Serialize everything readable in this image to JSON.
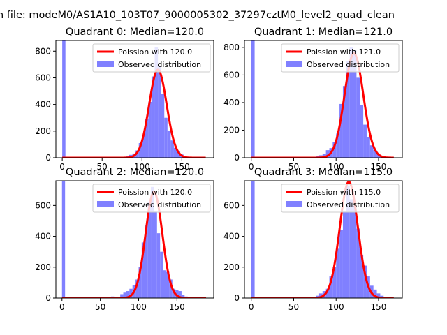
{
  "figure": {
    "suptitle": "n file: modeM0/AS1A10_103T07_9000005302_37297cztM0_level2_quad_clean"
  },
  "colors": {
    "poisson_line": "#ff0000",
    "observed_bars": "#8080ff",
    "axes": "#000000",
    "background": "#ffffff"
  },
  "chart_data": [
    {
      "type": "bar",
      "title": "Quadrant 0: Median=120.0",
      "xlabel": "",
      "ylabel": "",
      "xlim": [
        -8,
        190
      ],
      "ylim": [
        0,
        880
      ],
      "xticks": [
        0,
        50,
        100,
        150
      ],
      "yticks": [
        0,
        200,
        400,
        600,
        800
      ],
      "legend_position": "upper right",
      "series": [
        {
          "name": "Poission with 120.0",
          "kind": "line",
          "mean": 120.0
        },
        {
          "name": "Observed distribution",
          "kind": "histogram",
          "bin_width": 4,
          "bins_start": [
            0,
            68,
            72,
            76,
            80,
            84,
            88,
            92,
            96,
            100,
            104,
            108,
            112,
            116,
            120,
            124,
            128,
            132,
            136,
            140,
            144,
            148,
            152,
            156,
            160,
            164,
            168
          ],
          "counts": [
            880,
            2,
            3,
            6,
            12,
            22,
            32,
            55,
            110,
            170,
            290,
            420,
            610,
            830,
            690,
            480,
            300,
            200,
            130,
            75,
            50,
            25,
            12,
            6,
            3,
            2,
            1
          ]
        }
      ]
    },
    {
      "type": "bar",
      "title": "Quadrant 1: Median=121.0",
      "xlabel": "",
      "ylabel": "",
      "xlim": [
        -8,
        178
      ],
      "ylim": [
        0,
        850
      ],
      "xticks": [
        0,
        50,
        100,
        150
      ],
      "yticks": [
        0,
        200,
        400,
        600,
        800
      ],
      "legend_position": "upper right",
      "series": [
        {
          "name": "Poission with 121.0",
          "kind": "line",
          "mean": 121.0
        },
        {
          "name": "Observed distribution",
          "kind": "histogram",
          "bin_width": 4,
          "bins_start": [
            0,
            68,
            72,
            76,
            80,
            84,
            88,
            92,
            96,
            100,
            104,
            108,
            112,
            116,
            120,
            124,
            128,
            132,
            136,
            140,
            144,
            148,
            152,
            156,
            160,
            164
          ],
          "counts": [
            850,
            3,
            5,
            10,
            18,
            30,
            55,
            70,
            115,
            175,
            390,
            520,
            700,
            800,
            780,
            580,
            380,
            240,
            150,
            90,
            55,
            30,
            14,
            7,
            3,
            1
          ]
        }
      ]
    },
    {
      "type": "bar",
      "title": "Quadrant 2: Median=120.0",
      "xlabel": "",
      "ylabel": "",
      "xlim": [
        -8,
        198
      ],
      "ylim": [
        0,
        760
      ],
      "xticks": [
        0,
        50,
        100,
        150
      ],
      "yticks": [
        0,
        200,
        400,
        600
      ],
      "legend_position": "upper right",
      "series": [
        {
          "name": "Poission with 120.0",
          "kind": "line",
          "mean": 120.0
        },
        {
          "name": "Observed distribution",
          "kind": "histogram",
          "bin_width": 4,
          "bins_start": [
            0,
            48,
            52,
            56,
            60,
            64,
            68,
            72,
            76,
            80,
            84,
            88,
            92,
            96,
            100,
            104,
            108,
            112,
            116,
            120,
            124,
            128,
            132,
            136,
            140,
            144,
            148,
            152,
            156,
            160,
            164,
            168
          ],
          "counts": [
            760,
            2,
            3,
            4,
            6,
            10,
            5,
            8,
            25,
            35,
            45,
            60,
            85,
            120,
            200,
            360,
            470,
            620,
            720,
            560,
            420,
            300,
            180,
            170,
            120,
            60,
            50,
            45,
            20,
            10,
            4,
            2
          ]
        }
      ]
    },
    {
      "type": "bar",
      "title": "Quadrant 3: Median=115.0",
      "xlabel": "",
      "ylabel": "",
      "xlim": [
        -8,
        178
      ],
      "ylim": [
        0,
        760
      ],
      "xticks": [
        0,
        50,
        100,
        150
      ],
      "yticks": [
        0,
        200,
        400,
        600
      ],
      "legend_position": "upper right",
      "series": [
        {
          "name": "Poission with 115.0",
          "kind": "line",
          "mean": 115.0
        },
        {
          "name": "Observed distribution",
          "kind": "histogram",
          "bin_width": 4,
          "bins_start": [
            0,
            64,
            68,
            72,
            76,
            80,
            84,
            88,
            92,
            96,
            100,
            104,
            108,
            112,
            116,
            120,
            124,
            128,
            132,
            136,
            140,
            144,
            148,
            152,
            156,
            160
          ],
          "counts": [
            760,
            3,
            5,
            8,
            15,
            30,
            45,
            60,
            140,
            200,
            320,
            440,
            560,
            730,
            640,
            600,
            450,
            280,
            210,
            140,
            80,
            55,
            30,
            15,
            6,
            2
          ]
        }
      ]
    }
  ]
}
